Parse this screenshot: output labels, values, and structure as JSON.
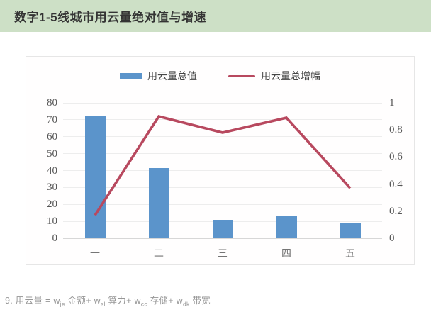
{
  "header": {
    "title": "数字1-5线城市用云量绝对值与增速",
    "background_color": "#cde0c6"
  },
  "chart_data": {
    "type": "bar",
    "subtype": "bar+line combo",
    "categories": [
      "一",
      "二",
      "三",
      "四",
      "五"
    ],
    "series": [
      {
        "name": "用云量总值",
        "type": "bar",
        "axis": "left",
        "color": "#5b94cb",
        "values": [
          72,
          41.5,
          11,
          13,
          8.7
        ]
      },
      {
        "name": "用云量总增幅",
        "type": "line",
        "axis": "right",
        "color": "#b8495f",
        "values": [
          0.17,
          0.9,
          0.78,
          0.89,
          0.37
        ]
      }
    ],
    "left_axis": {
      "min": 0,
      "max": 80,
      "step": 10,
      "ticks": [
        "0",
        "10",
        "20",
        "30",
        "40",
        "50",
        "60",
        "70",
        "80"
      ]
    },
    "right_axis": {
      "min": 0,
      "max": 1,
      "step": 0.2,
      "ticks": [
        "0",
        "0.2",
        "0.4",
        "0.6",
        "0.8",
        "1"
      ]
    },
    "grid": true,
    "legend_position": "top",
    "title": ""
  },
  "footnote": {
    "parts": [
      {
        "text": "9. 用云量 = w"
      },
      {
        "sub": "je"
      },
      {
        "text": " 金额+ w"
      },
      {
        "sub": "sl"
      },
      {
        "text": " 算力+ w"
      },
      {
        "sub": "cc"
      },
      {
        "text": " 存储+ w"
      },
      {
        "sub": "dk"
      },
      {
        "text": " 带宽"
      }
    ]
  }
}
